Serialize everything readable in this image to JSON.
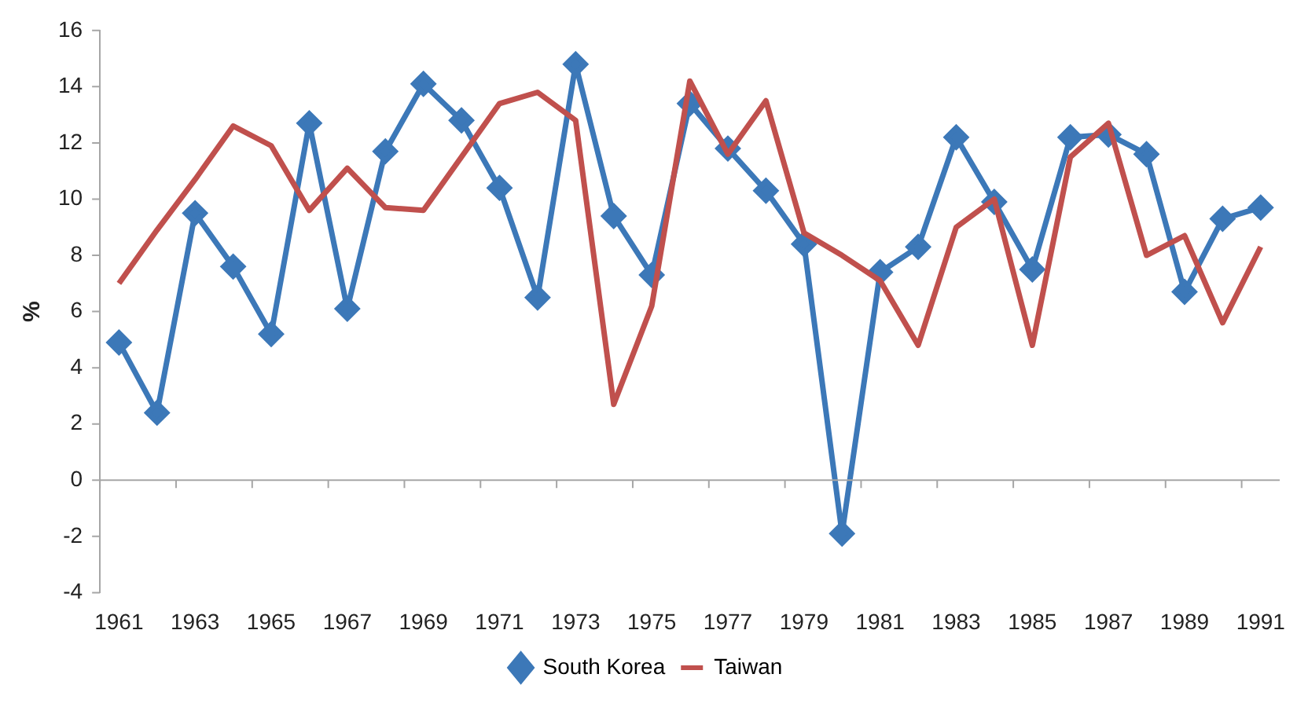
{
  "chart_data": {
    "type": "line",
    "ylabel": "%",
    "categories": [
      "1961",
      null,
      "1963",
      null,
      "1965",
      null,
      "1967",
      null,
      "1969",
      null,
      "1971",
      null,
      "1973",
      null,
      "1975",
      null,
      "1977",
      null,
      "1979",
      null,
      "1981",
      null,
      "1983",
      null,
      "1985",
      null,
      "1987",
      null,
      "1989",
      null,
      "1991"
    ],
    "series": [
      {
        "name": "South Korea",
        "color": "#3c78b8",
        "marker": "diamond",
        "values": [
          4.9,
          2.4,
          9.5,
          7.6,
          5.2,
          12.7,
          6.1,
          11.7,
          14.1,
          12.8,
          10.4,
          6.5,
          14.8,
          9.4,
          7.3,
          13.4,
          11.8,
          10.3,
          8.4,
          -1.9,
          7.4,
          8.3,
          12.2,
          9.9,
          7.5,
          12.2,
          12.3,
          11.6,
          6.7,
          9.3,
          9.7
        ]
      },
      {
        "name": "Taiwan",
        "color": "#c0504d",
        "marker": "none",
        "values": [
          7.0,
          8.9,
          10.7,
          12.6,
          11.9,
          9.6,
          11.1,
          9.7,
          9.6,
          11.5,
          13.4,
          13.8,
          12.8,
          2.7,
          6.2,
          14.2,
          11.6,
          13.5,
          8.8,
          8.0,
          7.1,
          4.8,
          9.0,
          10.0,
          4.8,
          11.5,
          12.7,
          8.0,
          8.7,
          5.6,
          8.3
        ]
      }
    ],
    "ylim": [
      -4,
      16
    ],
    "yticks": [
      -4,
      -2,
      0,
      2,
      4,
      6,
      8,
      10,
      12,
      14,
      16
    ],
    "ref_lines": [
      {
        "axis": "y",
        "value": 0,
        "color": "#a6a6a6"
      }
    ],
    "grid": false,
    "legend": "bottom"
  }
}
